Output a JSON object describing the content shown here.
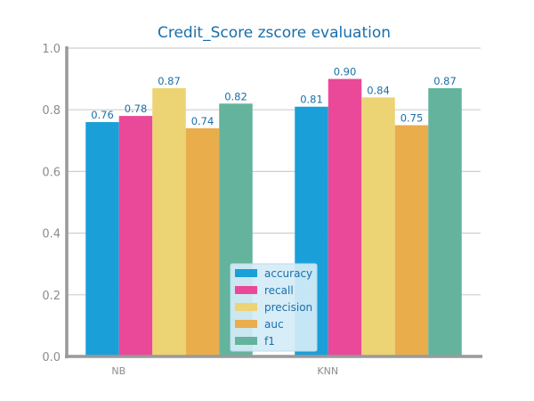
{
  "chart_data": {
    "type": "bar",
    "title": "Credit_Score zscore evaluation",
    "xlabel": "",
    "ylabel": "",
    "categories": [
      "NB",
      "KNN"
    ],
    "ylim": [
      0,
      1.0
    ],
    "yticks": [
      "0.0",
      "0.2",
      "0.4",
      "0.6",
      "0.8",
      "1.0"
    ],
    "grid": "horizontal",
    "legend_position": "bottom-center",
    "series": [
      {
        "name": "accuracy",
        "color": "#1a9fd9",
        "values": [
          0.76,
          0.81
        ],
        "labels": [
          "0.76",
          "0.81"
        ]
      },
      {
        "name": "recall",
        "color": "#ea4899",
        "values": [
          0.78,
          0.9
        ],
        "labels": [
          "0.78",
          "0.90"
        ]
      },
      {
        "name": "precision",
        "color": "#ecd374",
        "values": [
          0.87,
          0.84
        ],
        "labels": [
          "0.87",
          "0.84"
        ]
      },
      {
        "name": "auc",
        "color": "#e9ad4c",
        "values": [
          0.74,
          0.75
        ],
        "labels": [
          "0.74",
          "0.75"
        ]
      },
      {
        "name": "f1",
        "color": "#63b39d",
        "values": [
          0.82,
          0.87
        ],
        "labels": [
          "0.82",
          "0.87"
        ]
      }
    ],
    "colors": {
      "title": "#1a6faa",
      "tick_text": "#8c8c8c",
      "data_label": "#1a6faa",
      "axis": "#9a9a9a",
      "grid": "#cfcfcf",
      "legend_bg": "#d4ecf7",
      "legend_border": "#b8dcee",
      "legend_text": "#1a6faa"
    }
  }
}
